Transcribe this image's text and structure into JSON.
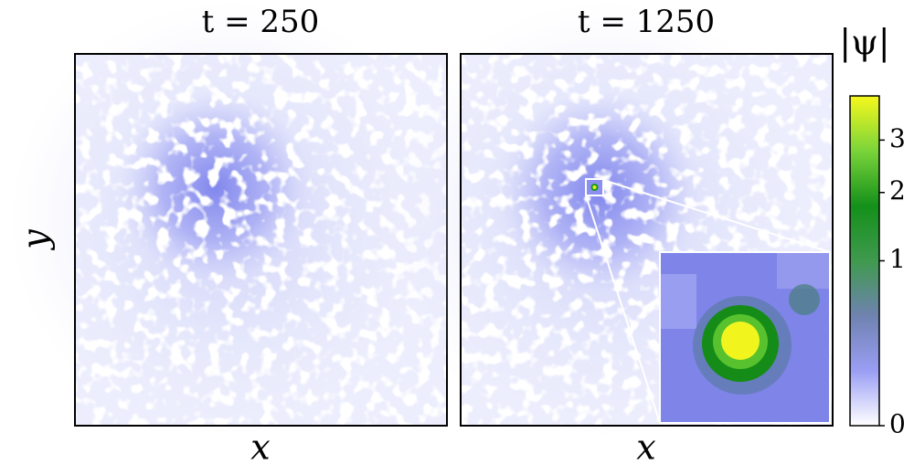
{
  "chart_data": [
    {
      "type": "heatmap",
      "title": "t = 250",
      "xlabel": "x",
      "ylabel": "y"
    },
    {
      "type": "heatmap",
      "title": "t = 1250",
      "xlabel": "x",
      "colorbar": {
        "label": "|ψ|",
        "lim": [
          0,
          4
        ],
        "ticks": [
          0,
          1,
          2,
          3
        ],
        "scale": "sqrt",
        "colors": [
          "#ffffff",
          "#9a9ef4",
          "#6f82b0",
          "#3f9a4e",
          "#14901a",
          "#7ad43a",
          "#f6f81c"
        ]
      }
    }
  ]
}
